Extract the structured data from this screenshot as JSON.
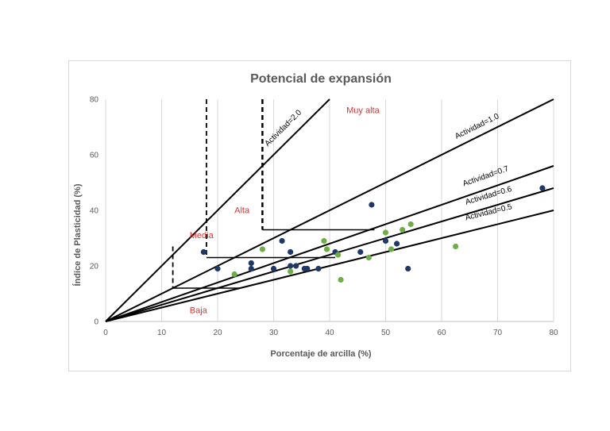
{
  "chart_data": {
    "type": "scatter",
    "title": "Potencial de expansión",
    "xlabel": "Porcentaje de arcilla (%)",
    "ylabel": "Índice de Plasticidad (%)",
    "xlim": [
      0,
      80
    ],
    "ylim": [
      0,
      80
    ],
    "x_ticks": [
      "0",
      "10",
      "20",
      "30",
      "40",
      "50",
      "60",
      "70",
      "80"
    ],
    "y_ticks": [
      "0",
      "20",
      "40",
      "60",
      "80"
    ],
    "grid": "vertical",
    "activity_lines": [
      {
        "label": "Actividad=2.0",
        "slope": 2.0
      },
      {
        "label": "Actividad=1.0",
        "slope": 1.0
      },
      {
        "label": "Actividad=0.7",
        "slope": 0.7
      },
      {
        "label": "Actividad=0.6",
        "slope": 0.6
      },
      {
        "label": "Actividad=0.5",
        "slope": 0.5
      }
    ],
    "dashed_limits": [
      12,
      18,
      28
    ],
    "zones": [
      {
        "label": "Muy alta",
        "x": 43,
        "y": 75
      },
      {
        "label": "Alta",
        "x": 23,
        "y": 39
      },
      {
        "label": "Media",
        "x": 15,
        "y": 30
      },
      {
        "label": "Baja",
        "x": 15,
        "y": 3
      }
    ],
    "series": [
      {
        "color": "#1f3864",
        "points": [
          [
            17.5,
            25
          ],
          [
            20,
            19
          ],
          [
            26,
            21
          ],
          [
            26,
            19
          ],
          [
            30,
            19
          ],
          [
            31.5,
            29
          ],
          [
            33,
            25
          ],
          [
            33,
            20
          ],
          [
            34,
            20
          ],
          [
            35.5,
            19
          ],
          [
            36,
            19
          ],
          [
            38,
            19
          ],
          [
            41,
            25
          ],
          [
            45.5,
            25
          ],
          [
            47.5,
            42
          ],
          [
            50,
            29
          ],
          [
            52,
            28
          ],
          [
            54,
            19
          ],
          [
            78,
            48
          ]
        ]
      },
      {
        "color": "#70ad47",
        "points": [
          [
            23,
            17
          ],
          [
            28,
            26
          ],
          [
            33,
            18
          ],
          [
            39,
            29
          ],
          [
            39.5,
            26
          ],
          [
            41.5,
            24
          ],
          [
            42,
            15
          ],
          [
            47,
            23
          ],
          [
            50,
            32
          ],
          [
            51,
            26
          ],
          [
            53,
            33
          ],
          [
            54.5,
            35
          ],
          [
            62.5,
            27
          ]
        ]
      }
    ]
  },
  "zone_color": "#e03131"
}
